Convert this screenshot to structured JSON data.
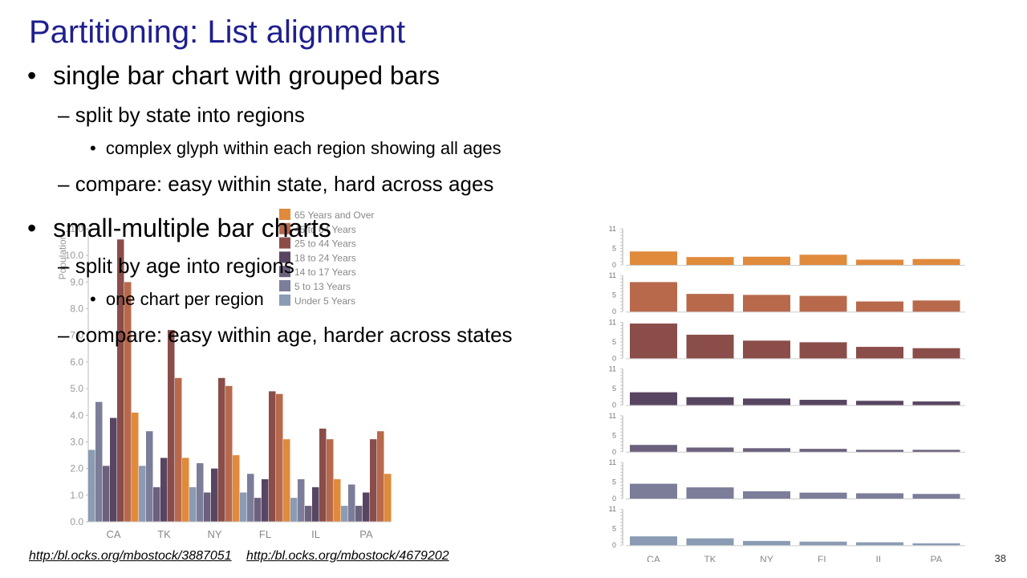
{
  "slide": {
    "title": "Partitioning: List alignment",
    "bullets": {
      "b1": "single bar chart with grouped bars",
      "b1_sub1": "split by state into regions",
      "b1_sub1_sub": "complex glyph within each region showing all ages",
      "b1_sub2": "compare: easy within state, hard across ages",
      "b2": "small-multiple bar charts",
      "b2_sub1": "split by age into regions",
      "b2_sub1_sub": "one chart per region",
      "b2_sub2": "compare: easy within age, harder across states"
    },
    "bullet_glyph": "•",
    "dash_glyph": "–",
    "links": [
      "http:/bl.ocks.org/mbostock/3887051",
      "http:/bl.ocks.org/mbostock/4679202"
    ],
    "page_number": "38"
  },
  "chart_data": [
    {
      "type": "bar",
      "title": "",
      "ylabel": "Population",
      "xlabel": "",
      "categories": [
        "CA",
        "TK",
        "NY",
        "FL",
        "IL",
        "PA"
      ],
      "ylim": [
        0,
        11
      ],
      "yticks": [
        "0.0",
        "1.0",
        "2.0",
        "3.0",
        "4.0",
        "5.0",
        "6.0",
        "7.0",
        "8.0",
        "9.0",
        "10.0",
        "11.0"
      ],
      "legend_position": "top-right",
      "series": [
        {
          "name": "Under 5 Years",
          "color": "#8a9bb3",
          "values": [
            2.7,
            2.1,
            1.3,
            1.1,
            0.9,
            0.6
          ]
        },
        {
          "name": "5 to 13 Years",
          "color": "#7b7d99",
          "values": [
            4.5,
            3.4,
            2.2,
            1.8,
            1.6,
            1.4
          ]
        },
        {
          "name": "14 to 17 Years",
          "color": "#6c617d",
          "values": [
            2.1,
            1.3,
            1.1,
            0.9,
            0.6,
            0.6
          ]
        },
        {
          "name": "18 to 24 Years",
          "color": "#574561",
          "values": [
            3.9,
            2.4,
            2.0,
            1.6,
            1.3,
            1.1
          ]
        },
        {
          "name": "25 to 44 Years",
          "color": "#8a4d49",
          "values": [
            10.6,
            7.2,
            5.4,
            4.9,
            3.5,
            3.1
          ]
        },
        {
          "name": "45 to 64 Years",
          "color": "#b8694c",
          "values": [
            9.0,
            5.4,
            5.1,
            4.8,
            3.1,
            3.4
          ]
        },
        {
          "name": "65 Years and Over",
          "color": "#e08a3c",
          "values": [
            4.1,
            2.4,
            2.5,
            3.1,
            1.6,
            1.8
          ]
        }
      ]
    },
    {
      "type": "bar",
      "title": "",
      "categories": [
        "CA",
        "TK",
        "NY",
        "FL",
        "IL",
        "PA"
      ],
      "ylim": [
        0,
        11
      ],
      "yticks": [
        "0",
        "5",
        "11"
      ],
      "rows": [
        {
          "name": "65 Years and Over",
          "color": "#e08a3c",
          "values": [
            4.1,
            2.4,
            2.5,
            3.1,
            1.6,
            1.8
          ]
        },
        {
          "name": "45 to 64 Years",
          "color": "#b8694c",
          "values": [
            9.0,
            5.4,
            5.1,
            4.8,
            3.1,
            3.4
          ]
        },
        {
          "name": "25 to 44 Years",
          "color": "#8a4d49",
          "values": [
            10.6,
            7.2,
            5.4,
            4.9,
            3.5,
            3.1
          ]
        },
        {
          "name": "18 to 24 Years",
          "color": "#574561",
          "values": [
            3.9,
            2.4,
            2.0,
            1.6,
            1.3,
            1.1
          ]
        },
        {
          "name": "14 to 17 Years",
          "color": "#6c617d",
          "values": [
            2.1,
            1.3,
            1.1,
            0.9,
            0.6,
            0.6
          ]
        },
        {
          "name": "5 to 13 Years",
          "color": "#7b7d99",
          "values": [
            4.5,
            3.4,
            2.2,
            1.8,
            1.6,
            1.4
          ]
        },
        {
          "name": "Under 5 Years",
          "color": "#8a9bb3",
          "values": [
            2.7,
            2.1,
            1.3,
            1.1,
            0.9,
            0.6
          ]
        }
      ]
    }
  ]
}
